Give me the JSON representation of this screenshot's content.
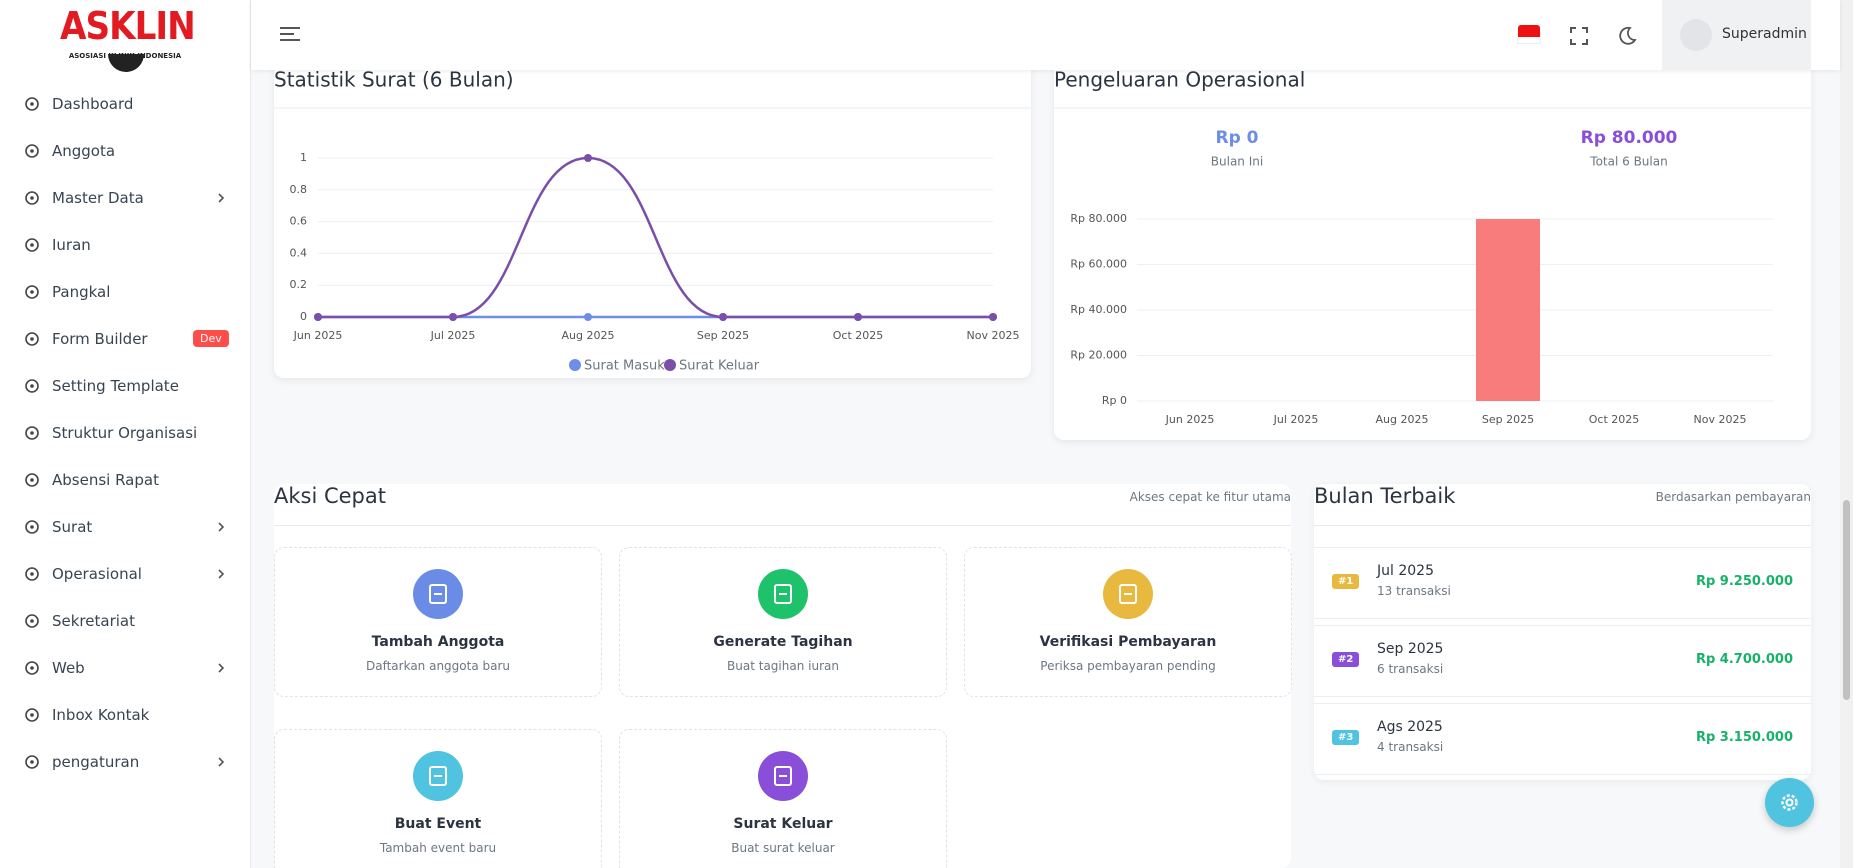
{
  "sidebar": {
    "logo": {
      "title": "ASKLIN",
      "subtitle": "ASOSIASI KLINIK INDONESIA"
    },
    "menu": [
      {
        "label": "Dashboard"
      },
      {
        "label": "Anggota"
      },
      {
        "label": "Master Data",
        "submenu": true
      },
      {
        "label": "Iuran"
      },
      {
        "label": "Pangkal"
      },
      {
        "label": "Form Builder",
        "badge": "Dev"
      },
      {
        "label": "Setting Template"
      },
      {
        "label": "Struktur Organisasi"
      },
      {
        "label": "Absensi Rapat"
      },
      {
        "label": "Surat",
        "submenu": true
      },
      {
        "label": "Operasional",
        "submenu": true
      },
      {
        "label": "Sekretariat"
      },
      {
        "label": "Web",
        "submenu": true
      },
      {
        "label": "Inbox Kontak"
      },
      {
        "label": "pengaturan",
        "submenu": true
      }
    ]
  },
  "header": {
    "user": "Superadmin"
  },
  "chart_data": [
    {
      "type": "line",
      "title": "Statistik Surat (6 Bulan)",
      "categories": [
        "Jun 2025",
        "Jul 2025",
        "Aug 2025",
        "Sep 2025",
        "Oct 2025",
        "Nov 2025"
      ],
      "series": [
        {
          "name": "Surat Masuk",
          "color": "#6c8ee6",
          "values": [
            0,
            0,
            0,
            0,
            0,
            0
          ]
        },
        {
          "name": "Surat Keluar",
          "color": "#7b4ea8",
          "values": [
            0,
            0,
            1,
            0,
            0,
            0
          ]
        }
      ],
      "ylim": [
        0,
        1
      ],
      "yticks": [
        0,
        0.2,
        0.4,
        0.6,
        0.8,
        1
      ],
      "grid": true,
      "smooth": true,
      "legend": "bottom"
    },
    {
      "type": "bar",
      "title": "Pengeluaran Operasional",
      "stats": [
        {
          "value": "Rp 0",
          "label": "Bulan Ini",
          "color": "#6c8ee6"
        },
        {
          "value": "Rp 80.000",
          "label": "Total 6 Bulan",
          "color": "#8a4fd8"
        }
      ],
      "categories": [
        "Jun 2025",
        "Jul 2025",
        "Aug 2025",
        "Sep 2025",
        "Oct 2025",
        "Nov 2025"
      ],
      "values": [
        0,
        0,
        0,
        80000,
        0,
        0
      ],
      "color": "#f87c7c",
      "ylim": [
        0,
        80000
      ],
      "yticks": [
        {
          "value": 0,
          "label": "Rp 0"
        },
        {
          "value": 20000,
          "label": "Rp 20.000"
        },
        {
          "value": 40000,
          "label": "Rp 40.000"
        },
        {
          "value": 60000,
          "label": "Rp 60.000"
        },
        {
          "value": 80000,
          "label": "Rp 80.000"
        }
      ],
      "grid": true
    }
  ],
  "aksi_cepat": {
    "title": "Aksi Cepat",
    "subtitle": "Akses cepat ke fitur utama",
    "actions": [
      {
        "title": "Tambah Anggota",
        "description": "Daftarkan anggota baru",
        "color": "#6a8ce6"
      },
      {
        "title": "Generate Tagihan",
        "description": "Buat tagihan iuran",
        "color": "#1ec26b"
      },
      {
        "title": "Verifikasi Pembayaran",
        "description": "Periksa pembayaran pending",
        "color": "#e8b83f"
      },
      {
        "title": "Buat Event",
        "description": "Tambah event baru",
        "color": "#4fc3e0"
      },
      {
        "title": "Surat Keluar",
        "description": "Buat surat keluar",
        "color": "#8a4fd8"
      }
    ]
  },
  "bulan_terbaik": {
    "title": "Bulan Terbaik",
    "subtitle": "Berdasarkan pembayaran",
    "rows": [
      {
        "rank": "#1",
        "month": "Jul 2025",
        "transactions": "13 transaksi",
        "amount": "Rp 9.250.000",
        "color": "#e8b83f"
      },
      {
        "rank": "#2",
        "month": "Sep 2025",
        "transactions": "6 transaksi",
        "amount": "Rp 4.700.000",
        "color": "#8a4fd8"
      },
      {
        "rank": "#3",
        "month": "Ags 2025",
        "transactions": "4 transaksi",
        "amount": "Rp 3.150.000",
        "color": "#4fc3e0"
      }
    ]
  }
}
